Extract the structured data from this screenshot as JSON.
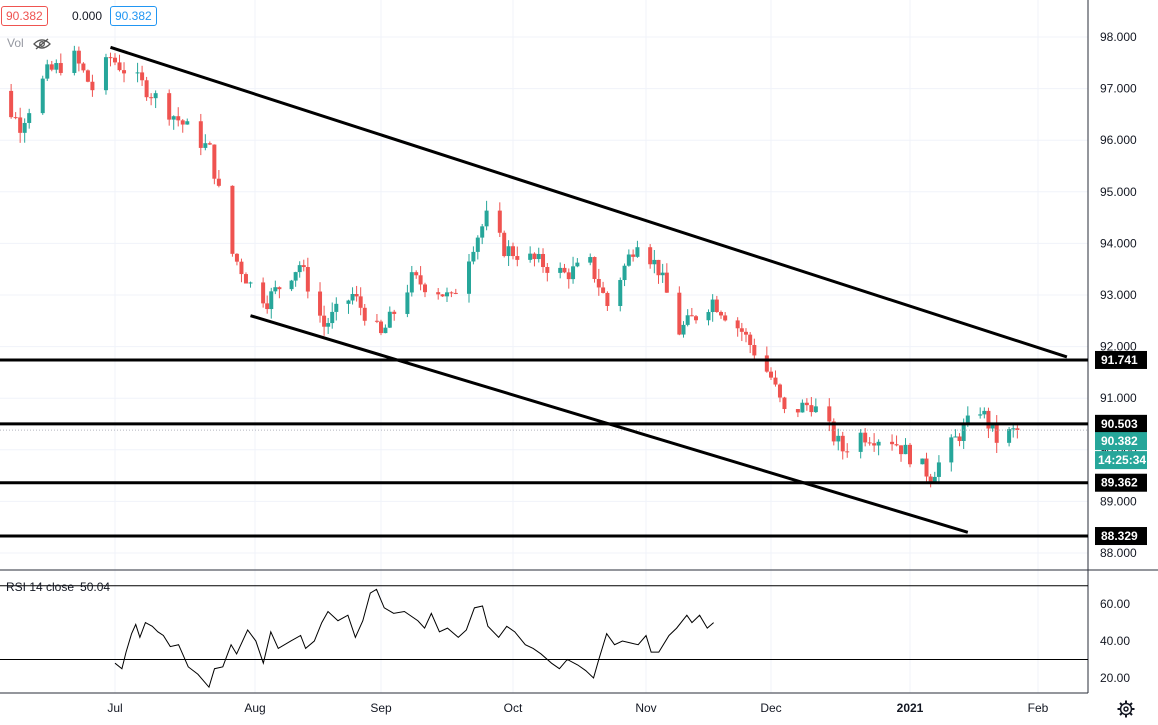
{
  "header": {
    "price": "90.382",
    "change": "0.000",
    "last": "90.382",
    "vol_label": "Vol"
  },
  "rsi": {
    "label": "RSI 14 close",
    "value": "50.04",
    "ticks": [
      "60.00",
      "40.00",
      "20.00"
    ]
  },
  "price_axis": {
    "ticks": [
      "98.000",
      "97.000",
      "96.000",
      "95.000",
      "94.000",
      "93.000",
      "92.000",
      "91.000",
      "90.000",
      "89.000",
      "88.000"
    ],
    "levels": [
      "91.741",
      "90.503",
      "89.362",
      "88.329"
    ],
    "current_price": "90.382",
    "countdown": "14:25:34"
  },
  "time_axis": {
    "labels": [
      "Jul",
      "Aug",
      "Sep",
      "Oct",
      "Nov",
      "Dec",
      "2021",
      "Feb"
    ]
  },
  "colors": {
    "up": "#26a69a",
    "down": "#ef5350",
    "level_line": "#000000",
    "rsi_line": "#000000",
    "current_price_tag": "#26a69a"
  },
  "chart_data": {
    "type": "candlestick",
    "y_range": [
      88,
      98.3
    ],
    "rsi_levels": [
      70,
      30
    ],
    "rsi_range": [
      14,
      72
    ],
    "anchors": [
      [
        "2020-06-01",
        96.6
      ],
      [
        "2020-06-05",
        96.9
      ],
      [
        "2020-06-10",
        96.3
      ],
      [
        "2020-06-16",
        97.3
      ],
      [
        "2020-06-22",
        97.6
      ],
      [
        "2020-06-26",
        97.0
      ],
      [
        "2020-06-30",
        97.6
      ],
      [
        "2020-07-08",
        97.0
      ],
      [
        "2020-07-15",
        96.4
      ],
      [
        "2020-07-22",
        95.8
      ],
      [
        "2020-07-27",
        93.8
      ],
      [
        "2020-07-31",
        93.2
      ],
      [
        "2020-08-04",
        92.9
      ],
      [
        "2020-08-12",
        93.6
      ],
      [
        "2020-08-18",
        92.4
      ],
      [
        "2020-08-25",
        93.0
      ],
      [
        "2020-09-01",
        92.2
      ],
      [
        "2020-09-08",
        93.3
      ],
      [
        "2020-09-14",
        93.1
      ],
      [
        "2020-09-17",
        92.9
      ],
      [
        "2020-09-22",
        94.0
      ],
      [
        "2020-09-25",
        94.5
      ],
      [
        "2020-09-29",
        93.9
      ],
      [
        "2020-10-08",
        93.6
      ],
      [
        "2020-10-13",
        93.4
      ],
      [
        "2020-10-19",
        93.6
      ],
      [
        "2020-10-23",
        92.8
      ],
      [
        "2020-10-30",
        94.1
      ],
      [
        "2020-11-04",
        93.5
      ],
      [
        "2020-11-09",
        92.3
      ],
      [
        "2020-11-17",
        92.9
      ],
      [
        "2020-11-24",
        92.3
      ],
      [
        "2020-12-01",
        91.4
      ],
      [
        "2020-12-04",
        90.7
      ],
      [
        "2020-12-10",
        90.9
      ],
      [
        "2020-12-17",
        90.0
      ],
      [
        "2020-12-21",
        90.3
      ],
      [
        "2020-12-28",
        90.2
      ],
      [
        "2021-01-06",
        89.5
      ],
      [
        "2021-01-12",
        90.2
      ],
      [
        "2021-01-18",
        90.8
      ],
      [
        "2021-01-22",
        90.2
      ],
      [
        "2021-01-27",
        90.382
      ]
    ],
    "rsi_series": [
      [
        0,
        28
      ],
      [
        0.05,
        25
      ],
      [
        0.08,
        34
      ],
      [
        0.12,
        44
      ],
      [
        0.15,
        49
      ],
      [
        0.18,
        42
      ],
      [
        0.22,
        50
      ],
      [
        0.27,
        48
      ],
      [
        0.31,
        45
      ],
      [
        0.35,
        43
      ],
      [
        0.4,
        37
      ],
      [
        0.46,
        38
      ],
      [
        0.53,
        26
      ],
      [
        0.6,
        22
      ],
      [
        0.68,
        15
      ],
      [
        0.72,
        25
      ],
      [
        0.78,
        26
      ],
      [
        0.84,
        38
      ],
      [
        0.88,
        33
      ],
      [
        0.96,
        46
      ],
      [
        1.02,
        40
      ],
      [
        1.08,
        28
      ],
      [
        1.14,
        45
      ],
      [
        1.2,
        36
      ],
      [
        1.3,
        40
      ],
      [
        1.38,
        43
      ],
      [
        1.42,
        36
      ],
      [
        1.49,
        40
      ],
      [
        1.55,
        50
      ],
      [
        1.6,
        56
      ],
      [
        1.68,
        51
      ],
      [
        1.76,
        54
      ],
      [
        1.82,
        42
      ],
      [
        1.88,
        51
      ],
      [
        1.94,
        66
      ],
      [
        1.99,
        68
      ],
      [
        2.05,
        58
      ],
      [
        2.12,
        55
      ],
      [
        2.2,
        56
      ],
      [
        2.3,
        51
      ],
      [
        2.35,
        47
      ],
      [
        2.4,
        55
      ],
      [
        2.46,
        45
      ],
      [
        2.52,
        47
      ],
      [
        2.6,
        42
      ],
      [
        2.66,
        46
      ],
      [
        2.72,
        58
      ],
      [
        2.78,
        59
      ],
      [
        2.82,
        48
      ],
      [
        2.9,
        42
      ],
      [
        2.96,
        48
      ],
      [
        3.02,
        45
      ],
      [
        3.1,
        38
      ],
      [
        3.16,
        36
      ],
      [
        3.22,
        33
      ],
      [
        3.3,
        28
      ],
      [
        3.36,
        25
      ],
      [
        3.42,
        30
      ],
      [
        3.5,
        27
      ],
      [
        3.56,
        24
      ],
      [
        3.62,
        20
      ],
      [
        3.66,
        30
      ],
      [
        3.72,
        44
      ],
      [
        3.78,
        38
      ],
      [
        3.84,
        40
      ],
      [
        3.9,
        39
      ],
      [
        3.96,
        38
      ],
      [
        4.02,
        43
      ],
      [
        4.06,
        34
      ],
      [
        4.12,
        34
      ],
      [
        4.2,
        43
      ],
      [
        4.26,
        47
      ],
      [
        4.34,
        54
      ],
      [
        4.38,
        50
      ],
      [
        4.44,
        54
      ],
      [
        4.5,
        47
      ],
      [
        4.55,
        50
      ]
    ],
    "trendlines": [
      {
        "from": [
          "2020-06-30",
          97.8
        ],
        "to": [
          "2021-02-08",
          91.8
        ]
      },
      {
        "from": [
          "2020-07-31",
          92.6
        ],
        "to": [
          "2021-01-15",
          88.4
        ]
      }
    ],
    "horizontal_levels": [
      91.741,
      90.503,
      89.362,
      88.329
    ]
  }
}
